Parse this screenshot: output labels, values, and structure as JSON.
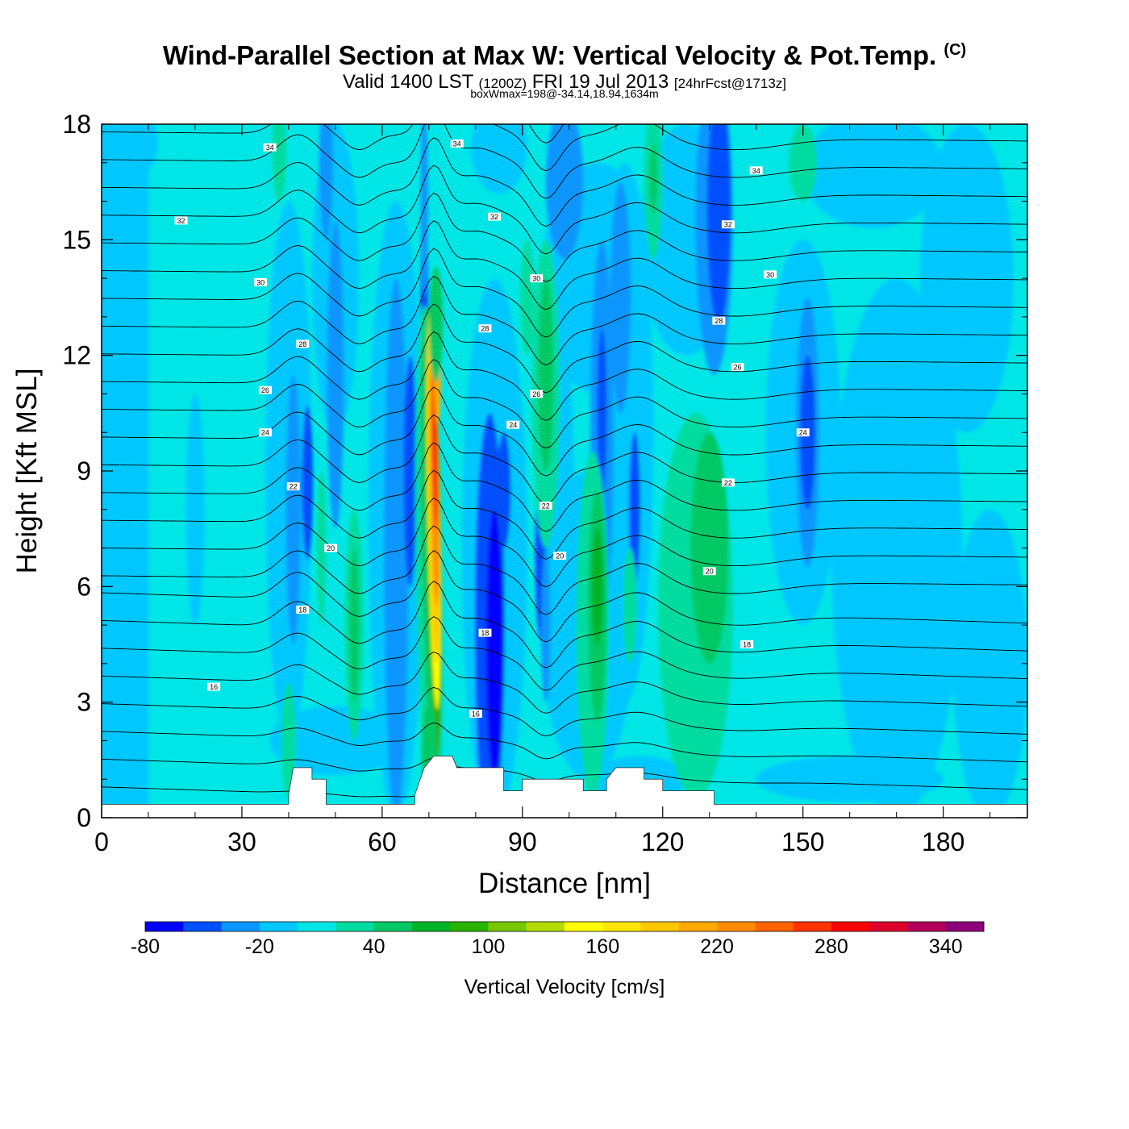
{
  "title": {
    "main": "Wind-Parallel Section at Max W: Vertical Velocity & Pot.Temp.",
    "copyright": "(C)",
    "valid_prefix": "Valid 1400 LST",
    "valid_z": "(1200Z)",
    "valid_date": "FRI 19 Jul 2013",
    "valid_fcst": "[24hrFcst@1713z]",
    "box_wmax": "boxWmax=198@-34.14,18.94,1634m"
  },
  "chart_data": {
    "type": "contour-cross-section",
    "xlabel": "Distance [nm]",
    "ylabel": "Height [Kft MSL]",
    "xlim": [
      0,
      198
    ],
    "ylim": [
      0,
      18
    ],
    "xticks": [
      "0",
      "30",
      "60",
      "90",
      "120",
      "150",
      "180"
    ],
    "yticks": [
      "0",
      "3",
      "6",
      "9",
      "12",
      "15",
      "18"
    ],
    "colorbar": {
      "label": "Vertical Velocity [cm/s]",
      "levels": [
        -80,
        -60,
        -40,
        -20,
        0,
        20,
        40,
        60,
        80,
        100,
        120,
        140,
        160,
        180,
        200,
        220,
        240,
        260,
        280,
        300,
        320,
        340,
        360
      ],
      "colors": [
        "#0000ff",
        "#0050ff",
        "#0a96ff",
        "#00c8ff",
        "#00e6e6",
        "#00dca0",
        "#00c864",
        "#00b428",
        "#28b400",
        "#78c800",
        "#b4dc00",
        "#ffff00",
        "#ffe600",
        "#ffc800",
        "#ffaa00",
        "#ff8c00",
        "#ff6400",
        "#ff3200",
        "#ff0000",
        "#dc0028",
        "#b4005a",
        "#8c0078"
      ],
      "tick_labels": [
        "-80",
        "-20",
        "40",
        "100",
        "160",
        "220",
        "280",
        "340"
      ]
    },
    "theta_labels": [
      {
        "x": 36,
        "y": 17.4,
        "text": "34"
      },
      {
        "x": 76,
        "y": 17.5,
        "text": "34"
      },
      {
        "x": 140,
        "y": 16.8,
        "text": "34"
      },
      {
        "x": 17,
        "y": 15.5,
        "text": "32"
      },
      {
        "x": 84,
        "y": 15.6,
        "text": "32"
      },
      {
        "x": 134,
        "y": 15.4,
        "text": "32"
      },
      {
        "x": 34,
        "y": 13.9,
        "text": "30"
      },
      {
        "x": 93,
        "y": 14.0,
        "text": "30"
      },
      {
        "x": 143,
        "y": 14.1,
        "text": "30"
      },
      {
        "x": 43,
        "y": 12.3,
        "text": "28"
      },
      {
        "x": 82,
        "y": 12.7,
        "text": "28"
      },
      {
        "x": 132,
        "y": 12.9,
        "text": "28"
      },
      {
        "x": 35,
        "y": 11.1,
        "text": "26"
      },
      {
        "x": 93,
        "y": 11.0,
        "text": "26"
      },
      {
        "x": 136,
        "y": 11.7,
        "text": "26"
      },
      {
        "x": 35,
        "y": 10.0,
        "text": "24"
      },
      {
        "x": 88,
        "y": 10.2,
        "text": "24"
      },
      {
        "x": 150,
        "y": 10.0,
        "text": "24"
      },
      {
        "x": 41,
        "y": 8.6,
        "text": "22"
      },
      {
        "x": 95,
        "y": 8.1,
        "text": "22"
      },
      {
        "x": 134,
        "y": 8.7,
        "text": "22"
      },
      {
        "x": 49,
        "y": 7.0,
        "text": "20"
      },
      {
        "x": 98,
        "y": 6.8,
        "text": "20"
      },
      {
        "x": 130,
        "y": 6.4,
        "text": "20"
      },
      {
        "x": 43,
        "y": 5.4,
        "text": "18"
      },
      {
        "x": 82,
        "y": 4.8,
        "text": "18"
      },
      {
        "x": 138,
        "y": 4.5,
        "text": "18"
      },
      {
        "x": 24,
        "y": 3.4,
        "text": "16"
      },
      {
        "x": 80,
        "y": 2.7,
        "text": "16"
      }
    ]
  }
}
